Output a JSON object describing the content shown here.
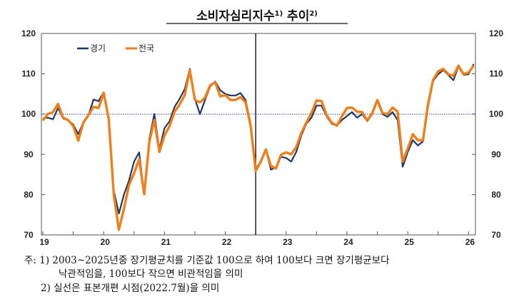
{
  "chart_data": {
    "type": "line",
    "title": "소비자심리지수",
    "title_sup1": "1)",
    "title_mid": " 추이",
    "title_sup2": "2)",
    "ylim": [
      70,
      120
    ],
    "yticks": [
      "70",
      "80",
      "90",
      "100",
      "110",
      "120"
    ],
    "xtick_labels": [
      "19",
      "20",
      "21",
      "22",
      "23",
      "24",
      "25",
      "26"
    ],
    "reference_line": {
      "value": 100,
      "style": "dotted",
      "color": "#2f4f8f"
    },
    "vertical_marker": "2022-07",
    "legend_placement": "top-left",
    "x": [
      "2019-01",
      "2019-02",
      "2019-03",
      "2019-04",
      "2019-05",
      "2019-06",
      "2019-07",
      "2019-08",
      "2019-09",
      "2019-10",
      "2019-11",
      "2019-12",
      "2020-01",
      "2020-02",
      "2020-03",
      "2020-04",
      "2020-05",
      "2020-06",
      "2020-07",
      "2020-08",
      "2020-09",
      "2020-10",
      "2020-11",
      "2020-12",
      "2021-01",
      "2021-02",
      "2021-03",
      "2021-04",
      "2021-05",
      "2021-06",
      "2021-07",
      "2021-08",
      "2021-09",
      "2021-10",
      "2021-11",
      "2021-12",
      "2022-01",
      "2022-02",
      "2022-03",
      "2022-04",
      "2022-05",
      "2022-06",
      "2022-07",
      "2022-08",
      "2022-09",
      "2022-10",
      "2022-11",
      "2022-12",
      "2023-01",
      "2023-02",
      "2023-03",
      "2023-04",
      "2023-05",
      "2023-06",
      "2023-07",
      "2023-08",
      "2023-09",
      "2023-10",
      "2023-11",
      "2023-12",
      "2024-01",
      "2024-02",
      "2024-03",
      "2024-04",
      "2024-05",
      "2024-06",
      "2024-07",
      "2024-08",
      "2024-09",
      "2024-10",
      "2024-11",
      "2024-12",
      "2025-01",
      "2025-02",
      "2025-03",
      "2025-04",
      "2025-05",
      "2025-06",
      "2025-07",
      "2025-08",
      "2025-09",
      "2025-10",
      "2025-11",
      "2025-12",
      "2026-01",
      "2026-02"
    ],
    "series": [
      {
        "name": "경기",
        "color": "#1f3864",
        "values": [
          98.9,
          99.1,
          98.7,
          101.5,
          98.9,
          98.4,
          97.4,
          95.0,
          98.0,
          99.7,
          103.6,
          103.2,
          105.4,
          98.8,
          81.0,
          75.3,
          80.0,
          83.5,
          88.2,
          90.5,
          80.1,
          93.8,
          100.0,
          91.2,
          96.5,
          98.2,
          101.8,
          103.8,
          106.2,
          111.2,
          103.8,
          100.0,
          103.5,
          106.8,
          108.1,
          105.9,
          105.0,
          104.6,
          104.6,
          105.2,
          103.5,
          97.6,
          86.5,
          88.2,
          91.2,
          86.2,
          86.8,
          89.4,
          89.1,
          88.2,
          90.6,
          94.7,
          97.6,
          99.1,
          102.1,
          102.1,
          99.4,
          97.6,
          97.1,
          98.5,
          99.5,
          100.5,
          99.1,
          100.0,
          98.2,
          100.0,
          103.2,
          100.0,
          99.3,
          100.5,
          98.5,
          86.9,
          90.6,
          93.5,
          92.2,
          93.2,
          101.8,
          108.2,
          109.9,
          110.9,
          109.7,
          108.4,
          111.8,
          109.7,
          109.9,
          112.4
        ]
      },
      {
        "name": "전국",
        "color": "#f07f1a",
        "values": [
          98.4,
          100.0,
          100.5,
          102.5,
          99.1,
          98.5,
          97.0,
          93.4,
          97.9,
          99.7,
          101.8,
          101.5,
          105.3,
          98.8,
          80.0,
          71.3,
          76.5,
          82.4,
          85.3,
          88.8,
          80.1,
          93.0,
          98.5,
          90.6,
          94.7,
          97.0,
          100.6,
          102.4,
          104.7,
          110.9,
          103.5,
          102.9,
          104.1,
          107.1,
          107.9,
          104.4,
          104.7,
          103.5,
          103.5,
          104.2,
          102.9,
          97.1,
          85.9,
          88.2,
          91.2,
          87.1,
          86.5,
          89.9,
          90.5,
          90.0,
          91.8,
          95.3,
          97.9,
          100.3,
          103.4,
          103.2,
          99.7,
          97.9,
          97.1,
          99.4,
          101.5,
          101.6,
          100.6,
          100.5,
          98.4,
          100.3,
          103.5,
          100.3,
          100.0,
          101.6,
          100.6,
          88.2,
          91.5,
          95.0,
          93.5,
          93.5,
          102.4,
          108.5,
          110.6,
          111.2,
          109.9,
          109.5,
          112.0,
          109.9,
          110.3,
          112.0
        ]
      }
    ]
  },
  "notes": {
    "line1": "주: 1) 2003~2025년중 장기평균치를 기준값 100으로 하여 100보다 크면 장기평균보다",
    "line2": "낙관적임을, 100보다 작으면 비관적임을 의미",
    "line3": "2) 실선은 표본개편 시점(2022.7월)을 의미"
  }
}
